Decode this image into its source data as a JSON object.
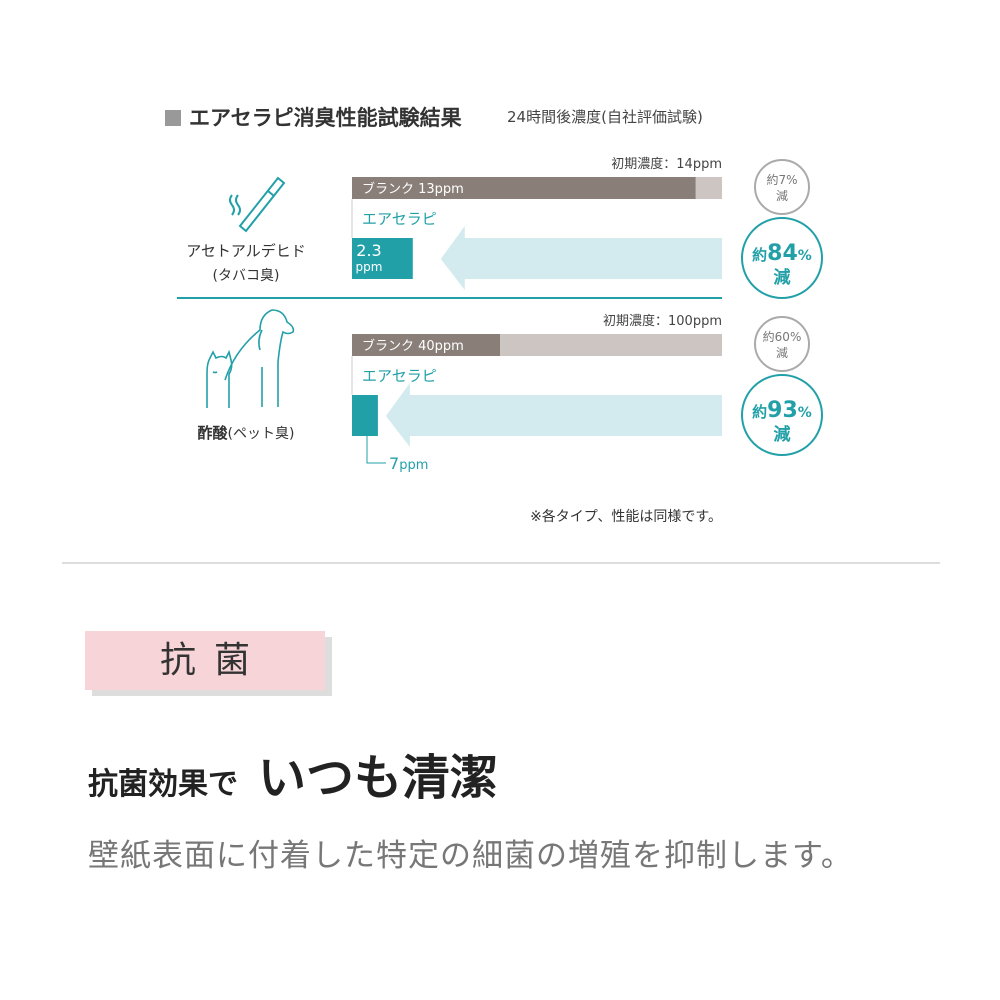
{
  "title": "エアセラピ消臭性能試験結果",
  "subtitle": "24時間後濃度(自社評価試験)",
  "colors": {
    "teal": "#22a0a8",
    "blank": "#8a7e78",
    "initial": "#cdc5c2",
    "arrow": "#d3ebee",
    "badge": "#f7d4d8"
  },
  "chart_data": {
    "type": "bar",
    "unit": "ppm",
    "groups": [
      {
        "name": "アセトアルデヒド",
        "sub": "(タバコ臭)",
        "icon": "cigarette-icon",
        "initial_label": "初期濃度：14ppm",
        "initial": 14,
        "blank_label": "ブランク 13ppm",
        "blank": 13,
        "product_label": "エアセラピ",
        "product": 2.3,
        "product_value_label": "2.3",
        "product_unit_label": "ppm",
        "blank_reduction": {
          "prefix": "約",
          "value": "7",
          "pct": "%",
          "suffix": "減"
        },
        "product_reduction": {
          "prefix": "約",
          "value": "84",
          "pct": "%",
          "suffix": "減"
        }
      },
      {
        "name": "酢酸",
        "sub": "(ペット臭)",
        "icon": "pet-dog-cat-icon",
        "initial_label": "初期濃度：100ppm",
        "initial": 100,
        "blank_label": "ブランク  40ppm",
        "blank": 40,
        "product_label": "エアセラピ",
        "product": 7,
        "product_value_label": "7",
        "product_unit_label": "ppm",
        "blank_reduction": {
          "prefix": "約",
          "value": "60",
          "pct": "%",
          "suffix": "減"
        },
        "product_reduction": {
          "prefix": "約",
          "value": "93",
          "pct": "%",
          "suffix": "減"
        }
      }
    ]
  },
  "note": "※各タイプ、性能は同様です。",
  "section": {
    "badge": "抗菌",
    "heading_a": "抗菌効果で",
    "heading_b": "いつも清潔",
    "description": "壁紙表面に付着した特定の細菌の増殖を抑制します。"
  }
}
